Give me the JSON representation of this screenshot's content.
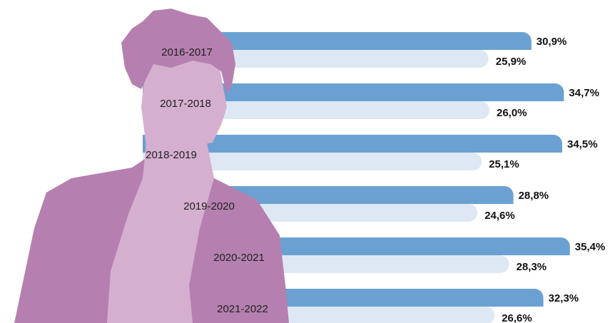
{
  "chart_data": {
    "type": "bar",
    "orientation": "horizontal",
    "categories": [
      "2016-2017",
      "2017-2018",
      "2018-2019",
      "2019-2020",
      "2020-2021",
      "2021-2022"
    ],
    "series": [
      {
        "color": "#6aa1d2",
        "values": [
          30.9,
          34.7,
          34.5,
          28.8,
          35.4,
          32.3
        ],
        "value_labels": [
          "30,9%",
          "34,7%",
          "34,5%",
          "28,8%",
          "35,4%",
          "32,3%"
        ]
      },
      {
        "color": "#dde8f4",
        "values": [
          25.9,
          26.0,
          25.1,
          24.6,
          28.3,
          26.6
        ],
        "value_labels": [
          "25,9%",
          "26,0%",
          "25,1%",
          "24,6%",
          "28,3%",
          "26,6%"
        ]
      }
    ]
  }
}
